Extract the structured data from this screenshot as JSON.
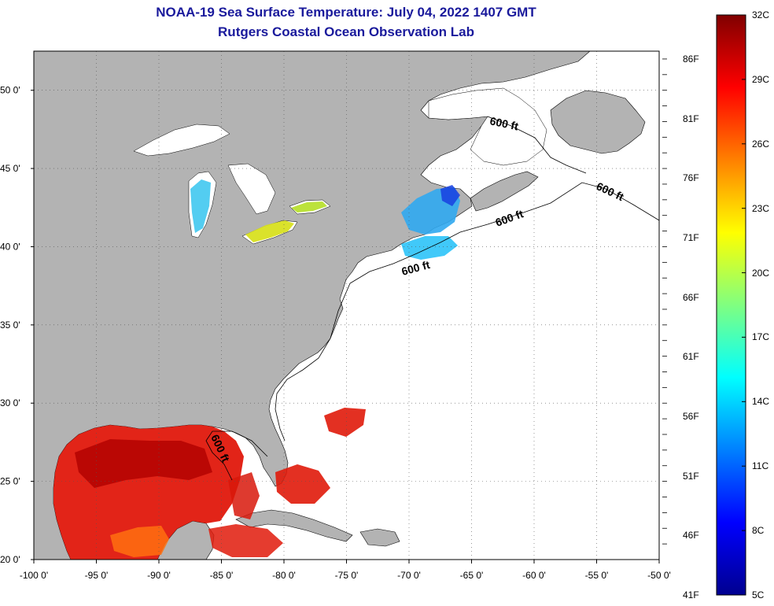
{
  "title": {
    "line1": "NOAA-19 Sea Surface Temperature:  July 04, 2022 1407 GMT",
    "line2": "Rutgers Coastal Ocean Observation Lab"
  },
  "map": {
    "lon_range": [
      -100,
      -50
    ],
    "lat_range": [
      20,
      52.5
    ],
    "lon_ticks": [
      {
        "value": -100,
        "label": "-100 0'"
      },
      {
        "value": -95,
        "label": "-95 0'"
      },
      {
        "value": -90,
        "label": "-90 0'"
      },
      {
        "value": -85,
        "label": "-85 0'"
      },
      {
        "value": -80,
        "label": "-80 0'"
      },
      {
        "value": -75,
        "label": "-75 0'"
      },
      {
        "value": -70,
        "label": "-70 0'"
      },
      {
        "value": -65,
        "label": "-65 0'"
      },
      {
        "value": -60,
        "label": "-60 0'"
      },
      {
        "value": -55,
        "label": "-55 0'"
      },
      {
        "value": -50,
        "label": "-50 0'"
      }
    ],
    "lat_ticks": [
      {
        "value": 20,
        "label": "20 0'"
      },
      {
        "value": 25,
        "label": "25 0'"
      },
      {
        "value": 30,
        "label": "30 0'"
      },
      {
        "value": 35,
        "label": "35 0'"
      },
      {
        "value": 40,
        "label": "40 0'"
      },
      {
        "value": 45,
        "label": "45 0'"
      },
      {
        "value": 50,
        "label": "50 0'"
      }
    ],
    "grid": true,
    "land_color": "#b3b3b3",
    "ocean_color": "#ffffff",
    "isobath_labels": [
      "600 ft",
      "600 ft",
      "600 ft",
      "600 ft",
      "600 ft"
    ]
  },
  "colorbar": {
    "celsius": [
      "32C",
      "29C",
      "26C",
      "23C",
      "20C",
      "17C",
      "14C",
      "11C",
      "8C",
      "5C"
    ],
    "fahrenheit": [
      "86F",
      "81F",
      "76F",
      "71F",
      "66F",
      "61F",
      "56F",
      "51F",
      "46F",
      "41F"
    ],
    "colors": [
      "#00008f",
      "#0000ff",
      "#0080ff",
      "#00ffff",
      "#80ff80",
      "#ffff00",
      "#ff8000",
      "#ff0000",
      "#800000"
    ]
  }
}
